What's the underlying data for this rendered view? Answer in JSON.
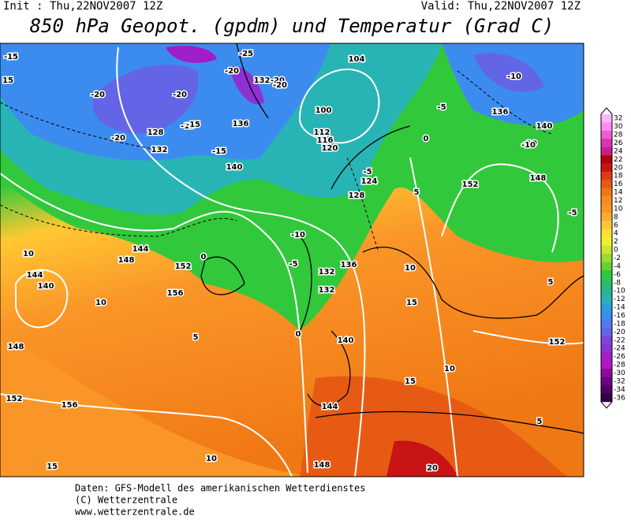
{
  "header": {
    "init": "Init : Thu,22NOV2007 12Z",
    "valid": "Valid: Thu,22NOV2007 12Z",
    "title": "850 hPa Geopot. (gpdm) und Temperatur (Grad C)"
  },
  "colorbar": {
    "labels": [
      32,
      30,
      28,
      26,
      24,
      22,
      20,
      18,
      16,
      14,
      12,
      10,
      8,
      6,
      4,
      2,
      0,
      -2,
      -4,
      -6,
      -8,
      -10,
      -12,
      -14,
      -16,
      -18,
      -20,
      -22,
      -24,
      -26,
      -28,
      -30,
      -32,
      -34,
      -36
    ],
    "colors": [
      "#ffb4ff",
      "#ff8cf0",
      "#f05ad2",
      "#dc32b4",
      "#c81e8c",
      "#b40000",
      "#c81414",
      "#dc3c14",
      "#e65a14",
      "#f07814",
      "#f58c1e",
      "#fa9628",
      "#ffaa32",
      "#ffc832",
      "#ffe132",
      "#f0f032",
      "#c8e632",
      "#96dc32",
      "#64d232",
      "#32c83c",
      "#28be64",
      "#28b48c",
      "#28b4b4",
      "#28a0dc",
      "#3c8cf0",
      "#5078f0",
      "#6464e6",
      "#7846dc",
      "#8c32d2",
      "#a01ec8",
      "#b414be",
      "#8c0aa0",
      "#6e0082",
      "#500064",
      "#320046"
    ]
  },
  "map": {
    "labels": [
      "-15",
      "15",
      "-20",
      "-20",
      "-25",
      "-20",
      "132",
      "-20",
      "128",
      "-15",
      "132",
      "-20",
      "-15",
      "136",
      "140",
      "-15",
      "100",
      "104",
      "112",
      "116",
      "120",
      "-10",
      "-5",
      "128",
      "-5",
      "124",
      "132",
      "-20",
      "136",
      "140",
      "-10",
      "148",
      "152",
      "-5",
      "0",
      "144",
      "148",
      "152",
      "156",
      "140",
      "144",
      "148",
      "152",
      "156",
      "10",
      "-10",
      "-5",
      "0",
      "5",
      "10",
      "15",
      "10",
      "5",
      "0",
      "132",
      "136",
      "140",
      "144",
      "148",
      "152",
      "15",
      "10",
      "20",
      "5",
      "-10",
      "5",
      "10",
      "15"
    ]
  },
  "footer": {
    "line1": "Daten: GFS-Modell des amerikanischen Wetterdienstes",
    "line2": "(C) Wetterzentrale",
    "line3": "www.wetterzentrale.de"
  }
}
